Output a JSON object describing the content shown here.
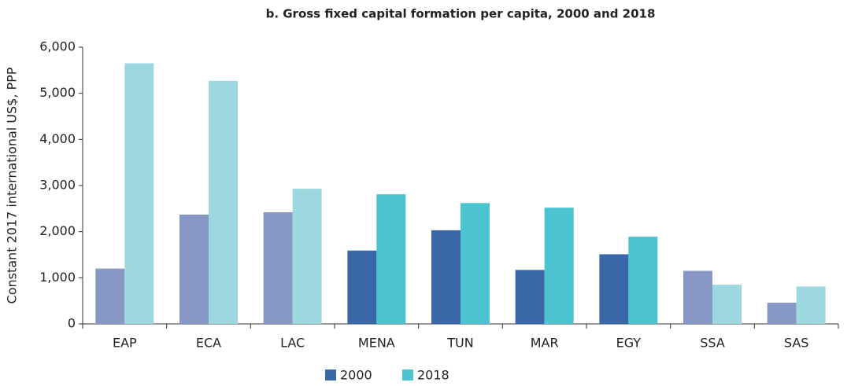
{
  "chart_data": {
    "type": "bar",
    "title": "b. Gross fixed capital formation per capita, 2000 and 2018",
    "y_label": "Constant 2017 international US$, PPP",
    "categories": [
      "EAP",
      "ECA",
      "LAC",
      "MENA",
      "TUN",
      "MAR",
      "EGY",
      "SSA",
      "SAS"
    ],
    "series": [
      {
        "name": "2000",
        "color": "#3a67a8",
        "bar_colors": [
          "#8898c6",
          "#8898c6",
          "#8898c6",
          "#3a67a8",
          "#3a67a8",
          "#3a67a8",
          "#3a67a8",
          "#8898c6",
          "#8898c6"
        ],
        "values": [
          1200,
          2370,
          2420,
          1590,
          2030,
          1170,
          1510,
          1150,
          460
        ]
      },
      {
        "name": "2018",
        "color": "#4cc3d0",
        "bar_colors": [
          "#9dd8e0",
          "#9dd8e0",
          "#9dd8e0",
          "#4cc3d0",
          "#4cc3d0",
          "#4cc3d0",
          "#4cc3d0",
          "#9dd8e0",
          "#9dd8e0"
        ],
        "values": [
          5650,
          5270,
          2930,
          2810,
          2620,
          2520,
          1890,
          850,
          810
        ]
      }
    ],
    "ylim": [
      0,
      6000
    ],
    "yticks": [
      0,
      {
        "value": 1000,
        "label": "1,000"
      },
      {
        "value": 2000,
        "label": "2,000"
      },
      {
        "value": 3000,
        "label": "3,000"
      },
      {
        "value": 4000,
        "label": "4,000"
      },
      {
        "value": 5000,
        "label": "5,000"
      },
      {
        "value": 6000,
        "label": "6,000"
      }
    ],
    "grid": false,
    "legend": "bottom"
  }
}
